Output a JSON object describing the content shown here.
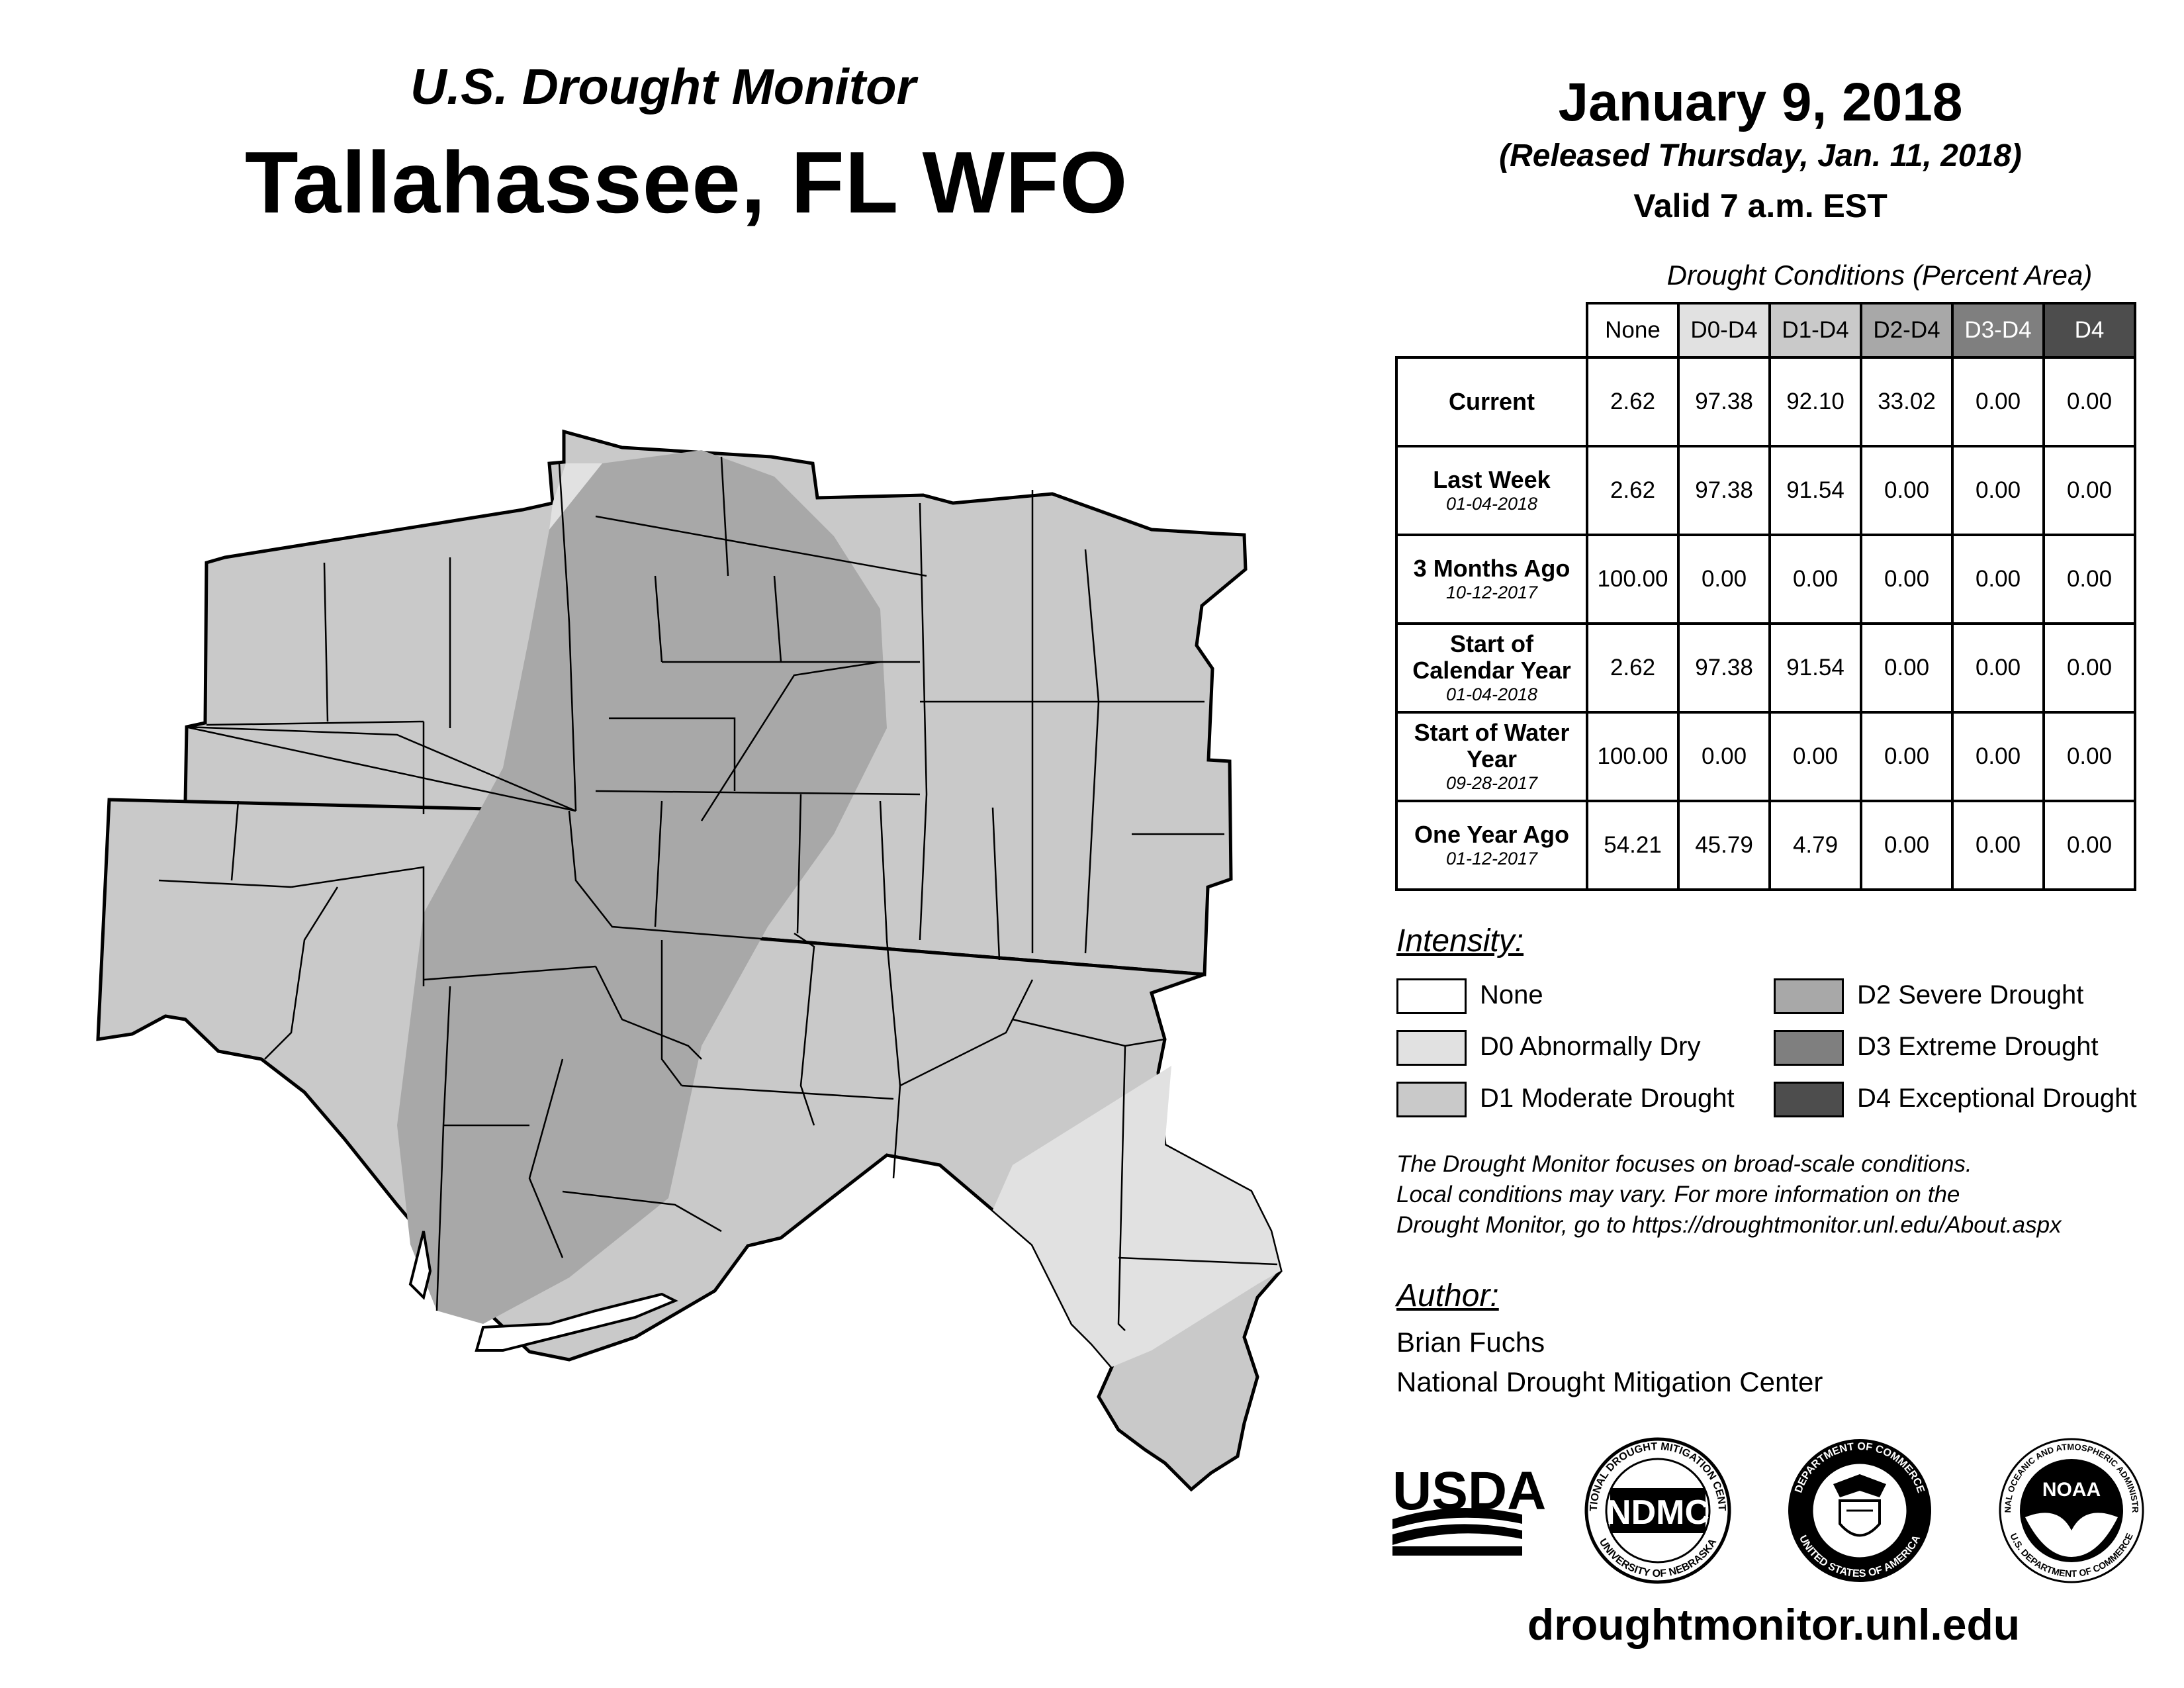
{
  "header": {
    "monitor_name": "U.S. Drought Monitor",
    "region": "Tallahassee, FL WFO",
    "map_date": "January 9, 2018",
    "released": "(Released Thursday, Jan. 11, 2018)",
    "valid": "Valid 7 a.m. EST"
  },
  "table": {
    "caption": "Drought Conditions (Percent Area)",
    "columns": [
      "None",
      "D0-D4",
      "D1-D4",
      "D2-D4",
      "D3-D4",
      "D4"
    ],
    "rows": [
      {
        "label": "Current",
        "date": "",
        "values": [
          "2.62",
          "97.38",
          "92.10",
          "33.02",
          "0.00",
          "0.00"
        ]
      },
      {
        "label": "Last Week",
        "date": "01-04-2018",
        "values": [
          "2.62",
          "97.38",
          "91.54",
          "0.00",
          "0.00",
          "0.00"
        ]
      },
      {
        "label": "3 Months Ago",
        "date": "10-12-2017",
        "values": [
          "100.00",
          "0.00",
          "0.00",
          "0.00",
          "0.00",
          "0.00"
        ]
      },
      {
        "label": "Start of Calendar Year",
        "date": "01-04-2018",
        "values": [
          "2.62",
          "97.38",
          "91.54",
          "0.00",
          "0.00",
          "0.00"
        ]
      },
      {
        "label": "Start of Water Year",
        "date": "09-28-2017",
        "values": [
          "100.00",
          "0.00",
          "0.00",
          "0.00",
          "0.00",
          "0.00"
        ]
      },
      {
        "label": "One Year Ago",
        "date": "01-12-2017",
        "values": [
          "54.21",
          "45.79",
          "4.79",
          "0.00",
          "0.00",
          "0.00"
        ]
      }
    ]
  },
  "legend": {
    "heading": "Intensity:",
    "items": [
      {
        "label": "None",
        "color": "#ffffff"
      },
      {
        "label": "D0 Abnormally Dry",
        "color": "#e1e1e1"
      },
      {
        "label": "D1 Moderate Drought",
        "color": "#c9c9c9"
      },
      {
        "label": "D2 Severe Drought",
        "color": "#a8a8a8"
      },
      {
        "label": "D3 Extreme Drought",
        "color": "#7f7f7f"
      },
      {
        "label": "D4 Exceptional Drought",
        "color": "#4d4d4d"
      }
    ]
  },
  "disclaimer": {
    "line1": "The Drought Monitor focuses on broad-scale conditions.",
    "line2": "Local conditions may vary. For more information on the",
    "line3": "Drought Monitor, go to https://droughtmonitor.unl.edu/About.aspx"
  },
  "author": {
    "heading": "Author:",
    "name": "Brian Fuchs",
    "organization": "National Drought Mitigation Center"
  },
  "logos": {
    "usda": "USDA",
    "ndmc": "NDMC",
    "ndmc_ring_top": "NATIONAL DROUGHT MITIGATION CENTER",
    "ndmc_ring_bottom": "UNIVERSITY OF NEBRASKA",
    "doc_ring_top": "DEPARTMENT OF COMMERCE",
    "doc_ring_bottom": "UNITED STATES OF AMERICA",
    "noaa": "NOAA",
    "noaa_ring_top": "NATIONAL OCEANIC AND ATMOSPHERIC ADMINISTRATION",
    "noaa_ring_bottom": "U.S. DEPARTMENT OF COMMERCE"
  },
  "footer": {
    "url": "droughtmonitor.unl.edu"
  }
}
